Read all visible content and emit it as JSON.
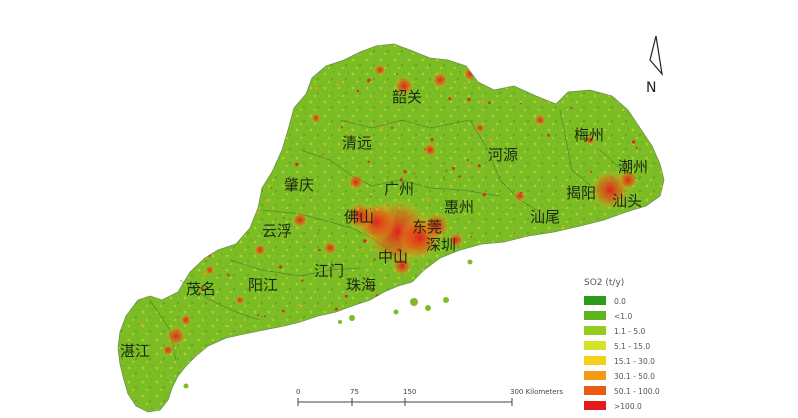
{
  "map": {
    "north_label": "N",
    "cities": [
      {
        "id": "shaoguan",
        "name": "韶关"
      },
      {
        "id": "qingyuan",
        "name": "清远"
      },
      {
        "id": "heyuan",
        "name": "河源"
      },
      {
        "id": "meizhou",
        "name": "梅州"
      },
      {
        "id": "chaozhou",
        "name": "潮州"
      },
      {
        "id": "zhaoqing",
        "name": "肇庆"
      },
      {
        "id": "guangzhou",
        "name": "广州"
      },
      {
        "id": "huizhou",
        "name": "惠州"
      },
      {
        "id": "jieyang",
        "name": "揭阳"
      },
      {
        "id": "shantou",
        "name": "汕头"
      },
      {
        "id": "shanwei",
        "name": "汕尾"
      },
      {
        "id": "foshan",
        "name": "佛山"
      },
      {
        "id": "dongguan",
        "name": "东莞"
      },
      {
        "id": "shenzhen",
        "name": "深圳"
      },
      {
        "id": "yunfu",
        "name": "云浮"
      },
      {
        "id": "zhongshan",
        "name": "中山"
      },
      {
        "id": "jiangmen",
        "name": "江门"
      },
      {
        "id": "zhuhai",
        "name": "珠海"
      },
      {
        "id": "maoming",
        "name": "茂名"
      },
      {
        "id": "yangjiang",
        "name": "阳江"
      },
      {
        "id": "zhanjiang",
        "name": "湛江"
      }
    ]
  },
  "legend": {
    "title": "SO2 (t/y)",
    "classes": [
      {
        "label": "0.0",
        "color": "#2e9a1c"
      },
      {
        "label": "<1.0",
        "color": "#5cb51e"
      },
      {
        "label": "1.1 - 5.0",
        "color": "#95cc22"
      },
      {
        "label": "5.1 - 15.0",
        "color": "#d4e32a"
      },
      {
        "label": "15.1 - 30.0",
        "color": "#f4cf1c"
      },
      {
        "label": "30.1 - 50.0",
        "color": "#f49a14"
      },
      {
        "label": "50.1 - 100.0",
        "color": "#ec5a14"
      },
      {
        "label": ">100.0",
        "color": "#e41a1c"
      }
    ]
  },
  "scale_bar": {
    "ticks": [
      "0",
      "75",
      "150",
      "300 Kilometers"
    ]
  },
  "colors": {
    "land": "#7cbd26",
    "boundary": "#4a7a2a",
    "hotspot": "#e41a1c"
  }
}
